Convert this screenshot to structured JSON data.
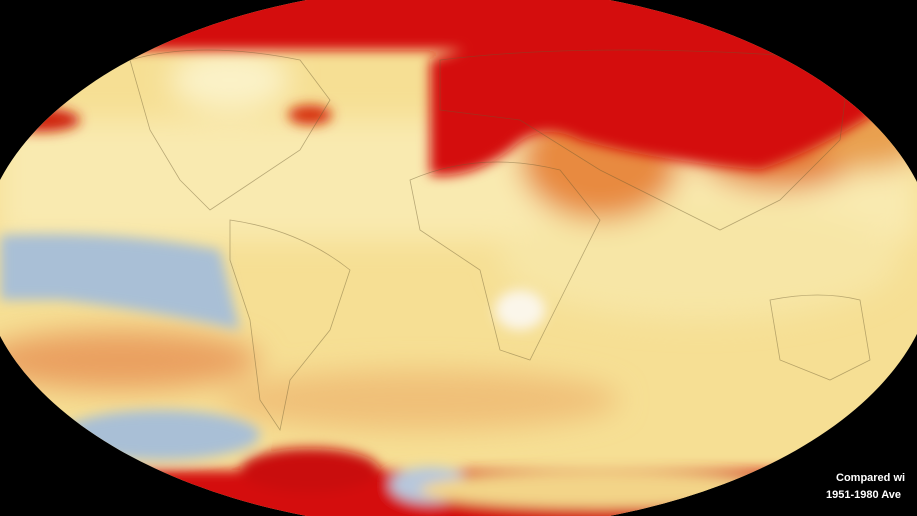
{
  "caption": {
    "line1": "Compared wi",
    "line2": "1951-1980 Ave"
  }
}
